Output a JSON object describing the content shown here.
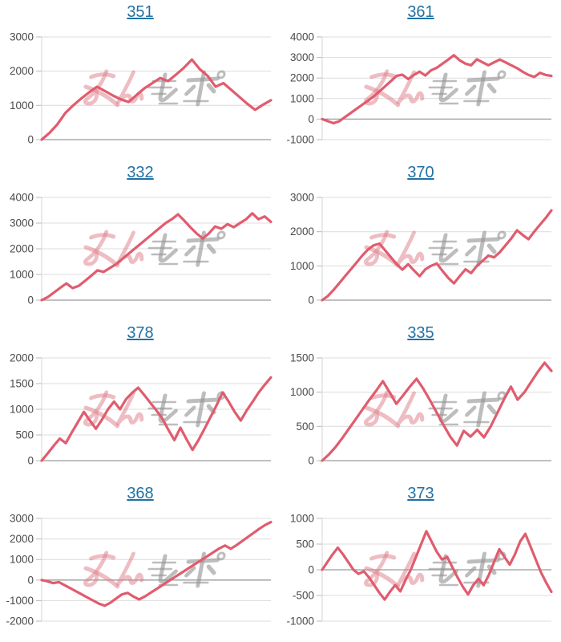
{
  "page": {
    "background": "#ffffff",
    "watermark_text": "みんレポ"
  },
  "style": {
    "line_color": "#e05c6e",
    "grid_color": "#dcdcdc",
    "zero_line_color": "#9a9a9a",
    "axis_color": "#d6d6d6",
    "tick_mark_color": "#b8b8b8",
    "label_color": "#4a4a4a",
    "title_color": "#2271a3",
    "watermark_pink": "rgba(221,123,136,0.5)",
    "watermark_gray": "rgba(148,148,148,0.62)"
  },
  "chart_data": [
    {
      "type": "line",
      "title": "351",
      "ticks": [
        3000,
        2000,
        1000,
        0
      ],
      "ylim": [
        0,
        3000
      ],
      "xlabel": "",
      "ylabel": "",
      "legend": null,
      "values": [
        0,
        200,
        450,
        780,
        1000,
        1200,
        1380,
        1545,
        1420,
        1290,
        1180,
        1100,
        1300,
        1500,
        1650,
        1800,
        1710,
        1900,
        2100,
        2340,
        2060,
        1860,
        1545,
        1650,
        1450,
        1250,
        1050,
        870,
        1020,
        1150
      ]
    },
    {
      "type": "line",
      "title": "361",
      "ticks": [
        4000,
        3000,
        2000,
        1000,
        0,
        -1000
      ],
      "ylim": [
        -1000,
        4000
      ],
      "xlabel": "",
      "ylabel": "",
      "legend": null,
      "values": [
        0,
        -100,
        -200,
        -100,
        100,
        300,
        500,
        700,
        900,
        1100,
        1350,
        1600,
        1850,
        2100,
        2160,
        1950,
        2150,
        2310,
        2120,
        2370,
        2500,
        2700,
        2900,
        3110,
        2860,
        2700,
        2620,
        2910,
        2760,
        2620,
        2760,
        2900,
        2760,
        2620,
        2480,
        2300,
        2150,
        2050,
        2250,
        2150,
        2100
      ]
    },
    {
      "type": "line",
      "title": "332",
      "ticks": [
        4000,
        3000,
        2000,
        1000,
        0
      ],
      "ylim": [
        0,
        4000
      ],
      "xlabel": "",
      "ylabel": "",
      "legend": null,
      "values": [
        0,
        120,
        300,
        480,
        650,
        470,
        560,
        750,
        950,
        1160,
        1100,
        1250,
        1400,
        1600,
        1800,
        2000,
        2200,
        2400,
        2600,
        2800,
        3000,
        3150,
        3340,
        3100,
        2840,
        2600,
        2400,
        2600,
        2870,
        2780,
        2960,
        2840,
        3000,
        3150,
        3380,
        3150,
        3260,
        3050
      ]
    },
    {
      "type": "line",
      "title": "370",
      "ticks": [
        3000,
        2000,
        1000,
        0
      ],
      "ylim": [
        0,
        3000
      ],
      "xlabel": "",
      "ylabel": "",
      "legend": null,
      "values": [
        0,
        120,
        300,
        500,
        700,
        900,
        1100,
        1300,
        1480,
        1600,
        1650,
        1450,
        1250,
        1050,
        890,
        1050,
        870,
        700,
        900,
        1000,
        1070,
        850,
        650,
        490,
        700,
        900,
        790,
        1000,
        1150,
        1300,
        1250,
        1400,
        1600,
        1800,
        2040,
        1900,
        1780,
        2000,
        2200,
        2400,
        2620
      ]
    },
    {
      "type": "line",
      "title": "378",
      "ticks": [
        2000,
        1500,
        1000,
        500,
        0
      ],
      "ylim": [
        0,
        2000
      ],
      "xlabel": "",
      "ylabel": "",
      "legend": null,
      "values": [
        0,
        140,
        290,
        430,
        340,
        550,
        750,
        950,
        780,
        620,
        800,
        1000,
        1150,
        1000,
        1200,
        1320,
        1420,
        1280,
        1130,
        980,
        820,
        600,
        400,
        640,
        420,
        210,
        400,
        620,
        850,
        1080,
        1330,
        1150,
        950,
        780,
        980,
        1150,
        1330,
        1480,
        1620
      ]
    },
    {
      "type": "line",
      "title": "335",
      "ticks": [
        1500,
        1000,
        500,
        0
      ],
      "ylim": [
        0,
        1500
      ],
      "xlabel": "",
      "ylabel": "",
      "legend": null,
      "values": [
        0,
        90,
        200,
        330,
        470,
        610,
        750,
        890,
        1020,
        1160,
        1000,
        830,
        950,
        1080,
        1195,
        1050,
        880,
        700,
        520,
        350,
        220,
        435,
        350,
        450,
        340,
        500,
        700,
        900,
        1080,
        890,
        1000,
        1150,
        1300,
        1430,
        1310
      ]
    },
    {
      "type": "line",
      "title": "368",
      "ticks": [
        3000,
        2000,
        1000,
        0,
        -1000,
        -2000
      ],
      "ylim": [
        -2000,
        3000
      ],
      "xlabel": "",
      "ylabel": "",
      "legend": null,
      "values": [
        0,
        -60,
        -150,
        -100,
        -250,
        -400,
        -550,
        -700,
        -850,
        -1000,
        -1150,
        -1250,
        -1100,
        -900,
        -700,
        -625,
        -800,
        -940,
        -800,
        -620,
        -440,
        -260,
        -80,
        100,
        280,
        460,
        640,
        820,
        1000,
        1180,
        1360,
        1540,
        1680,
        1520,
        1700,
        1900,
        2100,
        2300,
        2500,
        2680,
        2820
      ]
    },
    {
      "type": "line",
      "title": "373",
      "ticks": [
        1000,
        500,
        0,
        -500,
        -1000
      ],
      "ylim": [
        -1000,
        1000
      ],
      "xlabel": "",
      "ylabel": "",
      "legend": null,
      "values": [
        0,
        150,
        300,
        430,
        300,
        150,
        0,
        -80,
        -30,
        -150,
        -300,
        -450,
        -580,
        -430,
        -300,
        -420,
        -200,
        0,
        250,
        500,
        750,
        550,
        350,
        200,
        250,
        50,
        -150,
        -330,
        -480,
        -300,
        -175,
        -300,
        -100,
        150,
        400,
        250,
        100,
        300,
        550,
        700,
        450,
        200,
        -50,
        -250,
        -430
      ]
    }
  ]
}
